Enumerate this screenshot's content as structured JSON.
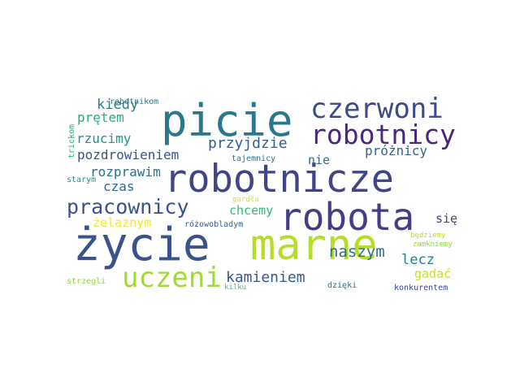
{
  "words": [
    {
      "id": "robotnicze",
      "text": "robotnicze",
      "color": "#414487"
    },
    {
      "id": "picie",
      "text": "picie",
      "color": "#2a788e"
    },
    {
      "id": "zycie",
      "text": "życie",
      "color": "#3b528b"
    },
    {
      "id": "marne",
      "text": "marne",
      "color": "#b5de2b"
    },
    {
      "id": "robota",
      "text": "robota",
      "color": "#433e85"
    },
    {
      "id": "czerwoni",
      "text": "czerwoni",
      "color": "#3e4a89"
    },
    {
      "id": "robotnicy",
      "text": "robotnicy",
      "color": "#482878"
    },
    {
      "id": "uczeni",
      "text": "uczeni",
      "color": "#a0da39"
    },
    {
      "id": "pracownicy",
      "text": "pracownicy",
      "color": "#3b528b"
    },
    {
      "id": "kamieniem",
      "text": "kamieniem",
      "color": "#38598c"
    },
    {
      "id": "naszym",
      "text": "naszym",
      "color": "#2f6c8e"
    },
    {
      "id": "przyjdzie",
      "text": "przyjdzie",
      "color": "#355f8d"
    },
    {
      "id": "kiedy",
      "text": "kiedy",
      "color": "#2a7b8e"
    },
    {
      "id": "pozdrowieniem",
      "text": "pozdrowieniem",
      "color": "#3a538b"
    },
    {
      "id": "rozprawim",
      "text": "rozprawim",
      "color": "#2e6f8e"
    },
    {
      "id": "rzucimy",
      "text": "rzucimy",
      "color": "#1f968b"
    },
    {
      "id": "pretem",
      "text": "prętem",
      "color": "#25ac82"
    },
    {
      "id": "czas",
      "text": "czas",
      "color": "#31688e"
    },
    {
      "id": "chcemy",
      "text": "chcemy",
      "color": "#35b779"
    },
    {
      "id": "zelaznym",
      "text": "żelaznym",
      "color": "#fde725"
    },
    {
      "id": "nie",
      "text": "nie",
      "color": "#2c728e"
    },
    {
      "id": "proznicy",
      "text": "próżnicy",
      "color": "#33638d"
    },
    {
      "id": "lecz",
      "text": "lecz",
      "color": "#26828e"
    },
    {
      "id": "sie",
      "text": "się",
      "color": "#3f4889"
    },
    {
      "id": "gadac",
      "text": "gadać",
      "color": "#c8e020"
    },
    {
      "id": "robotnikom",
      "text": "robotnikom",
      "color": "#2a788e"
    },
    {
      "id": "tajemnicy",
      "text": "tajemnicy",
      "color": "#2c718e"
    },
    {
      "id": "trickom",
      "text": "trickom",
      "color": "#29af7f"
    },
    {
      "id": "starym",
      "text": "starym",
      "color": "#21908d"
    },
    {
      "id": "gardla",
      "text": "gardła",
      "color": "#d8e219"
    },
    {
      "id": "rozowobladym",
      "text": "różowobladym",
      "color": "#375b8d"
    },
    {
      "id": "bedziemy",
      "text": "będziemy",
      "color": "#c2df23"
    },
    {
      "id": "zamkniemy",
      "text": "zamkniemy",
      "color": "#90d743"
    },
    {
      "id": "strzegli",
      "text": "strzegli",
      "color": "#8ed645"
    },
    {
      "id": "kilku",
      "text": "kilku",
      "color": "#4ac16d"
    },
    {
      "id": "dzieki",
      "text": "dzięki",
      "color": "#2e6e8e"
    },
    {
      "id": "konkurentem",
      "text": "konkurentem",
      "color": "#3f4788"
    }
  ]
}
